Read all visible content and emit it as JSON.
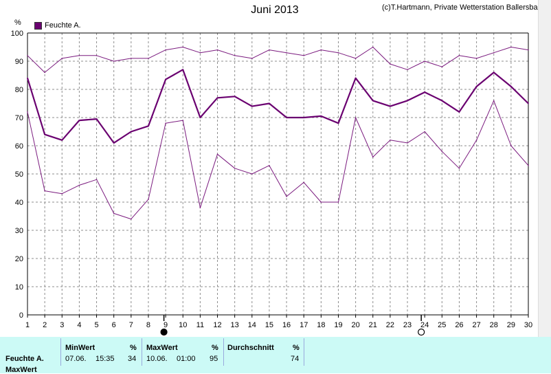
{
  "chart_data": {
    "type": "line",
    "title": "Juni 2013",
    "credit": "(c)T.Hartmann, Private Wetterstation Ballersbach",
    "ylabel": "%",
    "ylim": [
      0,
      100
    ],
    "yticks": [
      0,
      10,
      20,
      30,
      40,
      50,
      60,
      70,
      80,
      90,
      100
    ],
    "x": [
      1,
      2,
      3,
      4,
      5,
      6,
      7,
      8,
      9,
      10,
      11,
      12,
      13,
      14,
      15,
      16,
      17,
      18,
      19,
      20,
      21,
      22,
      23,
      24,
      25,
      26,
      27,
      28,
      29,
      30
    ],
    "grid": true,
    "legend_placement": "top-left",
    "moon_phase_days": [
      {
        "day": 8.9,
        "phase": "new"
      },
      {
        "day": 23.8,
        "phase": "full"
      }
    ],
    "series": [
      {
        "name": "Feuchte A.",
        "color": "#6a0070",
        "width": 2.2,
        "values": [
          84,
          64,
          62,
          69,
          69.5,
          61,
          65,
          67,
          83.5,
          87,
          70,
          77,
          77.5,
          74,
          75,
          70,
          70,
          70.5,
          68,
          84,
          76,
          74,
          76,
          79,
          76,
          72,
          81,
          86,
          81,
          75
        ]
      },
      {
        "color": "#7a1a7e",
        "width": 1,
        "values": [
          92,
          86,
          91,
          92,
          92,
          90,
          91,
          91,
          94,
          95,
          93,
          94,
          92,
          91,
          94,
          93,
          92,
          94,
          93,
          91,
          95,
          89,
          87,
          90,
          88,
          92,
          91,
          93,
          95,
          94
        ]
      },
      {
        "color": "#7a1a7e",
        "width": 1,
        "values": [
          72,
          44,
          43,
          46,
          48,
          36,
          34,
          41,
          68,
          69,
          38,
          57,
          52,
          50,
          53,
          42,
          47,
          40,
          40,
          70,
          56,
          62,
          61,
          65,
          58,
          52,
          62,
          76,
          60,
          53
        ]
      }
    ]
  },
  "table": {
    "row_label": "Feuchte A.",
    "row_label2": "MaxWert",
    "min_header": "MinWert",
    "min_unit": "%",
    "min_date": "07.06.",
    "min_time": "15:35",
    "min_value": "34",
    "max_header": "MaxWert",
    "max_unit": "%",
    "max_date": "10.06.",
    "max_time": "01:00",
    "max_value": "95",
    "avg_header": "Durchschnitt",
    "avg_unit": "%",
    "avg_value": "74"
  }
}
